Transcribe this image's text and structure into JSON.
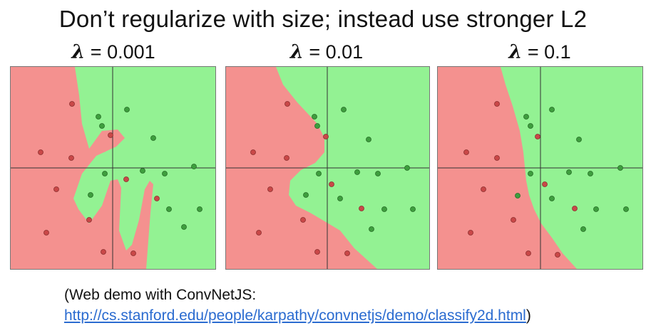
{
  "slide": {
    "title": "Don’t regularize with size; instead use stronger L2",
    "caption_line1": "(Web demo with ConvNetJS:",
    "caption_link": "http://cs.stanford.edu/people/karpathy/convnetjs/demo/classify2d.html",
    "caption_close": ")"
  },
  "colors": {
    "red_region": "#f4918f",
    "green_region": "#93f293",
    "red_point": "#c94848",
    "green_point": "#3e9e3e",
    "axis": "#333333"
  },
  "panels": [
    {
      "symbol": "λ",
      "value_label": "= 0.001"
    },
    {
      "symbol": "λ",
      "value_label": "= 0.01"
    },
    {
      "symbol": "λ",
      "value_label": "= 0.1"
    }
  ]
}
